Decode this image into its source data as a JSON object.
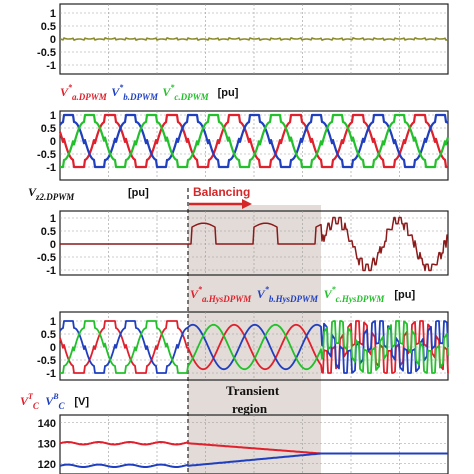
{
  "colors": {
    "panel1": "#8b8b2a",
    "phase_a": "#e0202c",
    "phase_b": "#1f3fbf",
    "phase_c": "#22c02a",
    "vz2": "#8b1a1a",
    "upper": "#e0202c",
    "lower": "#1f3fbf",
    "transient_band": "#d9cfca",
    "balancing": "#d62728"
  },
  "legend1": [
    {
      "v": "V",
      "sup": "*",
      "sub": "a.DPWM",
      "color": "#e0202c"
    },
    {
      "v": "V",
      "sup": "*",
      "sub": "b.DPWM",
      "color": "#1f3fbf"
    },
    {
      "v": "V",
      "sup": "*",
      "sub": "c.DPWM",
      "color": "#22c02a"
    },
    {
      "unit": "[pu]"
    }
  ],
  "label_vz2": {
    "v": "V",
    "sub": "z2.DPWM",
    "unit": "[pu]"
  },
  "legend2": [
    {
      "v": "V",
      "sup": "*",
      "sub": "a.HysDPWM",
      "color": "#e0202c"
    },
    {
      "v": "V",
      "sup": "*",
      "sub": "b.HysDPWM",
      "color": "#1f3fbf"
    },
    {
      "v": "V",
      "sup": "*",
      "sub": "c.HysDPWM",
      "color": "#22c02a"
    },
    {
      "unit": "[pu]"
    }
  ],
  "legend_cap": [
    {
      "v": "V",
      "sup": "T",
      "sub": "C",
      "color": "#e0202c"
    },
    {
      "v": "V",
      "sup": "B",
      "sub": "C",
      "color": "#1f3fbf"
    },
    {
      "unit": "[V]"
    }
  ],
  "annotations": {
    "balancing": "Balancing",
    "transient_1": "Transient",
    "transient_2": "region"
  },
  "chart_data": [
    {
      "type": "line",
      "name": "panel-1",
      "ylim": [
        -1.3,
        1.3
      ],
      "yticks": [
        "1",
        "0.5",
        "0",
        "-0.5",
        "-1"
      ],
      "grid": true,
      "series": [
        {
          "shape": "square-ish zero-sequence",
          "levels": [
            0.18,
            -0.1
          ]
        }
      ]
    },
    {
      "type": "line",
      "name": "panel-2-dpwm",
      "ylim": [
        -1.3,
        1.3
      ],
      "yticks": [
        "1",
        "0.5",
        "0",
        "-0.5",
        "-1"
      ],
      "grid": true,
      "series": [
        {
          "phase": "a",
          "color": "#e0202c"
        },
        {
          "phase": "b",
          "color": "#1f3fbf"
        },
        {
          "phase": "c",
          "color": "#22c02a"
        }
      ]
    },
    {
      "type": "line",
      "name": "panel-3-vz2",
      "ylim": [
        -1.3,
        1.3
      ],
      "yticks": [
        "1",
        "0.5",
        "0",
        "-0.5",
        "-1"
      ],
      "grid": true,
      "series": [
        {
          "segments": [
            "zero until balancing start",
            "positive pulses ~0.5-0.8 during balancing",
            "stepped bipolar after transient"
          ]
        }
      ]
    },
    {
      "type": "line",
      "name": "panel-4-hysdpwm",
      "ylim": [
        -1.3,
        1.3
      ],
      "yticks": [
        "1",
        "0.5",
        "0",
        "-0.5",
        "-1"
      ],
      "grid": true,
      "series": [
        {
          "phase": "a",
          "color": "#e0202c"
        },
        {
          "phase": "b",
          "color": "#1f3fbf"
        },
        {
          "phase": "c",
          "color": "#22c02a"
        }
      ]
    },
    {
      "type": "line",
      "name": "panel-5-capacitor",
      "ylim": [
        115,
        142
      ],
      "yticks": [
        "140",
        "130",
        "120"
      ],
      "grid": true,
      "series": [
        {
          "name": "V_C^T",
          "color": "#e0202c",
          "start": 130,
          "end": 125
        },
        {
          "name": "V_C^B",
          "color": "#1f3fbf",
          "start": 119,
          "end": 125
        }
      ]
    }
  ]
}
